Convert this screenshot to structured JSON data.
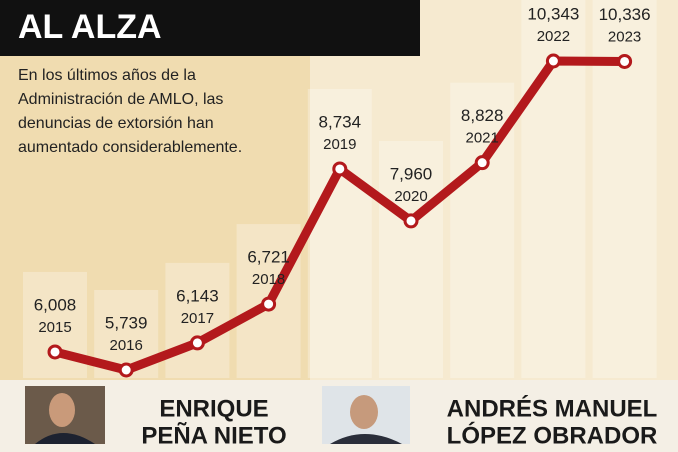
{
  "chart_data": {
    "type": "line",
    "title": "AL ALZA",
    "description": [
      "En los últimos años de la",
      "Administración de AMLO, las",
      "denuncias de extorsión han",
      "aumentado considerablemente."
    ],
    "categories": [
      "2015",
      "2016",
      "2017",
      "2018",
      "2019",
      "2020",
      "2021",
      "2022",
      "2023"
    ],
    "values": [
      6008,
      5739,
      6143,
      6721,
      8734,
      7960,
      8828,
      10343,
      10336
    ],
    "value_labels": [
      "6,008",
      "5,739",
      "6,143",
      "6,721",
      "8,734",
      "7,960",
      "8,828",
      "10,343",
      "10,336"
    ],
    "color": "#b3191c",
    "people": [
      {
        "name_lines": [
          "ENRIQUE",
          "PEÑA NIETO"
        ]
      },
      {
        "name_lines": [
          "ANDRÉS MANUEL",
          "LÓPEZ OBRADOR"
        ]
      }
    ]
  }
}
